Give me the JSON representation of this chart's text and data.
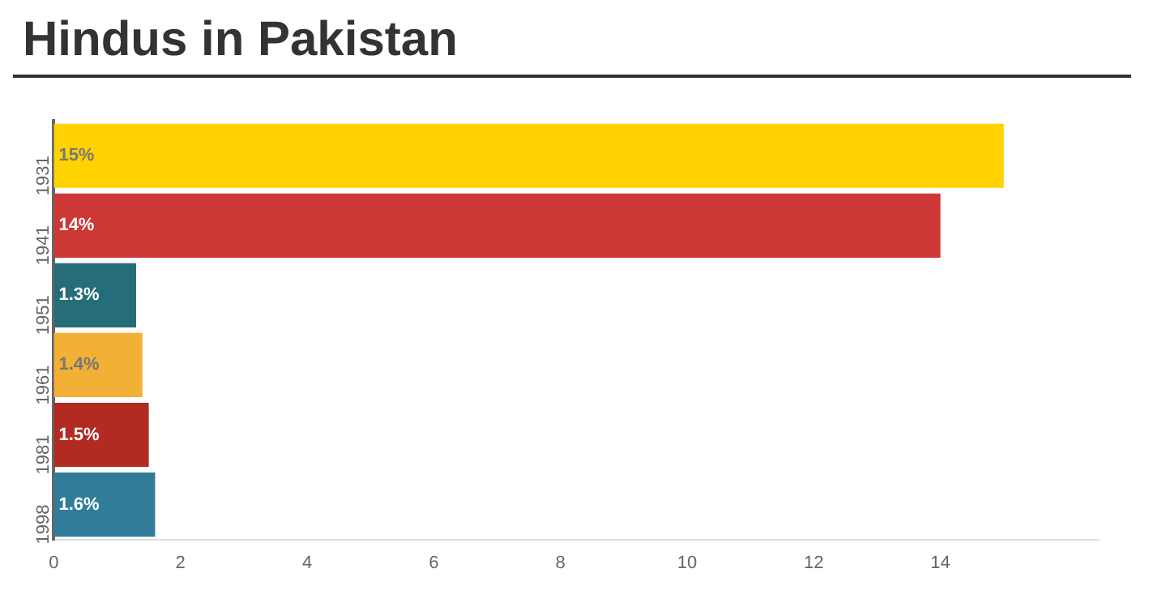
{
  "chart_data": {
    "type": "bar",
    "orientation": "horizontal",
    "title": "Hindus in Pakistan",
    "categories": [
      "1931",
      "1941",
      "1951",
      "1961",
      "1981",
      "1998"
    ],
    "values": [
      15,
      14,
      1.3,
      1.4,
      1.5,
      1.6
    ],
    "colors": [
      "#ffd200",
      "#cd3836",
      "#266d7a",
      "#f2b036",
      "#b12b22",
      "#317c99"
    ],
    "value_labels": [
      "15%",
      "14%",
      "1.3%",
      "1.4%",
      "1.5%",
      "1.6%"
    ],
    "xlim": [
      0,
      16.5
    ],
    "xticks": [
      0,
      2,
      4,
      6,
      8,
      10,
      12,
      14
    ],
    "grid": false,
    "legend": false
  }
}
